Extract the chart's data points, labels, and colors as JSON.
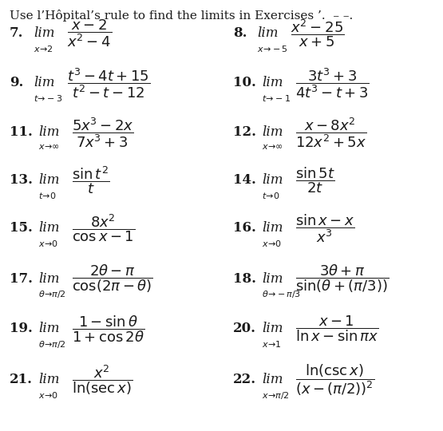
{
  "background_color": "#ffffff",
  "text_color": "#1a1a1a",
  "title": "Use l’Hôpital’s rule to find the limits in Exercises ’.  _ _ .",
  "items": [
    {
      "num": "7.",
      "math": "$\\dfrac{x - 2}{x^2 - 4}$",
      "sub": "$x\\!\\to\\!2$",
      "col": 0,
      "row": 0
    },
    {
      "num": "8.",
      "math": "$\\dfrac{x^2 - 25}{x + 5}$",
      "sub": "$x\\!\\to\\!-5$",
      "col": 1,
      "row": 0
    },
    {
      "num": "9.",
      "math": "$\\dfrac{t^3 - 4t + 15}{t^2 - t - 12}$",
      "sub": "$t\\!\\to\\!-3$",
      "col": 0,
      "row": 1
    },
    {
      "num": "10.",
      "math": "$\\dfrac{3t^3 + 3}{4t^3 - t + 3}$",
      "sub": "$t\\!\\to\\!-1$",
      "col": 1,
      "row": 1
    },
    {
      "num": "11.",
      "math": "$\\dfrac{5x^3 - 2x}{7x^3 + 3}$",
      "sub": "$x\\!\\to\\!\\infty$",
      "col": 0,
      "row": 2
    },
    {
      "num": "12.",
      "math": "$\\dfrac{x - 8x^2}{12x^2 + 5x}$",
      "sub": "$x\\!\\to\\!\\infty$",
      "col": 1,
      "row": 2
    },
    {
      "num": "13.",
      "math": "$\\dfrac{\\sin t^2}{t}$",
      "sub": "$t\\!\\to\\!0$",
      "col": 0,
      "row": 3
    },
    {
      "num": "14.",
      "math": "$\\dfrac{\\sin 5t}{2t}$",
      "sub": "$t\\!\\to\\!0$",
      "col": 1,
      "row": 3
    },
    {
      "num": "15.",
      "math": "$\\dfrac{8x^2}{\\cos x - 1}$",
      "sub": "$x\\!\\to\\!0$",
      "col": 0,
      "row": 4
    },
    {
      "num": "16.",
      "math": "$\\dfrac{\\sin x - x}{x^3}$",
      "sub": "$x\\!\\to\\!0$",
      "col": 1,
      "row": 4
    },
    {
      "num": "17.",
      "math": "$\\dfrac{2\\theta - \\pi}{\\cos(2\\pi - \\theta)}$",
      "sub": "$\\theta\\!\\to\\!\\pi/2$",
      "col": 0,
      "row": 5
    },
    {
      "num": "18.",
      "math": "$\\dfrac{3\\theta + \\pi}{\\sin(\\theta + (\\pi/3))}$",
      "sub": "$\\theta\\!\\to\\!-\\pi/3$",
      "col": 1,
      "row": 5
    },
    {
      "num": "19.",
      "math": "$\\dfrac{1 - \\sin\\theta}{1 + \\cos 2\\theta}$",
      "sub": "$\\theta\\!\\to\\!\\pi/2$",
      "col": 0,
      "row": 6
    },
    {
      "num": "20.",
      "math": "$\\dfrac{x - 1}{\\ln x - \\sin \\pi x}$",
      "sub": "$x\\!\\to\\!1$",
      "col": 1,
      "row": 6
    },
    {
      "num": "21.",
      "math": "$\\dfrac{x^2}{\\ln(\\sec x)}$",
      "sub": "$x\\!\\to\\!0$",
      "col": 0,
      "row": 7
    },
    {
      "num": "22.",
      "math": "$\\dfrac{\\ln(\\csc x)}{(x - (\\pi/2))^2}$",
      "sub": "$x\\!\\to\\!\\pi/2$",
      "col": 1,
      "row": 7
    }
  ]
}
